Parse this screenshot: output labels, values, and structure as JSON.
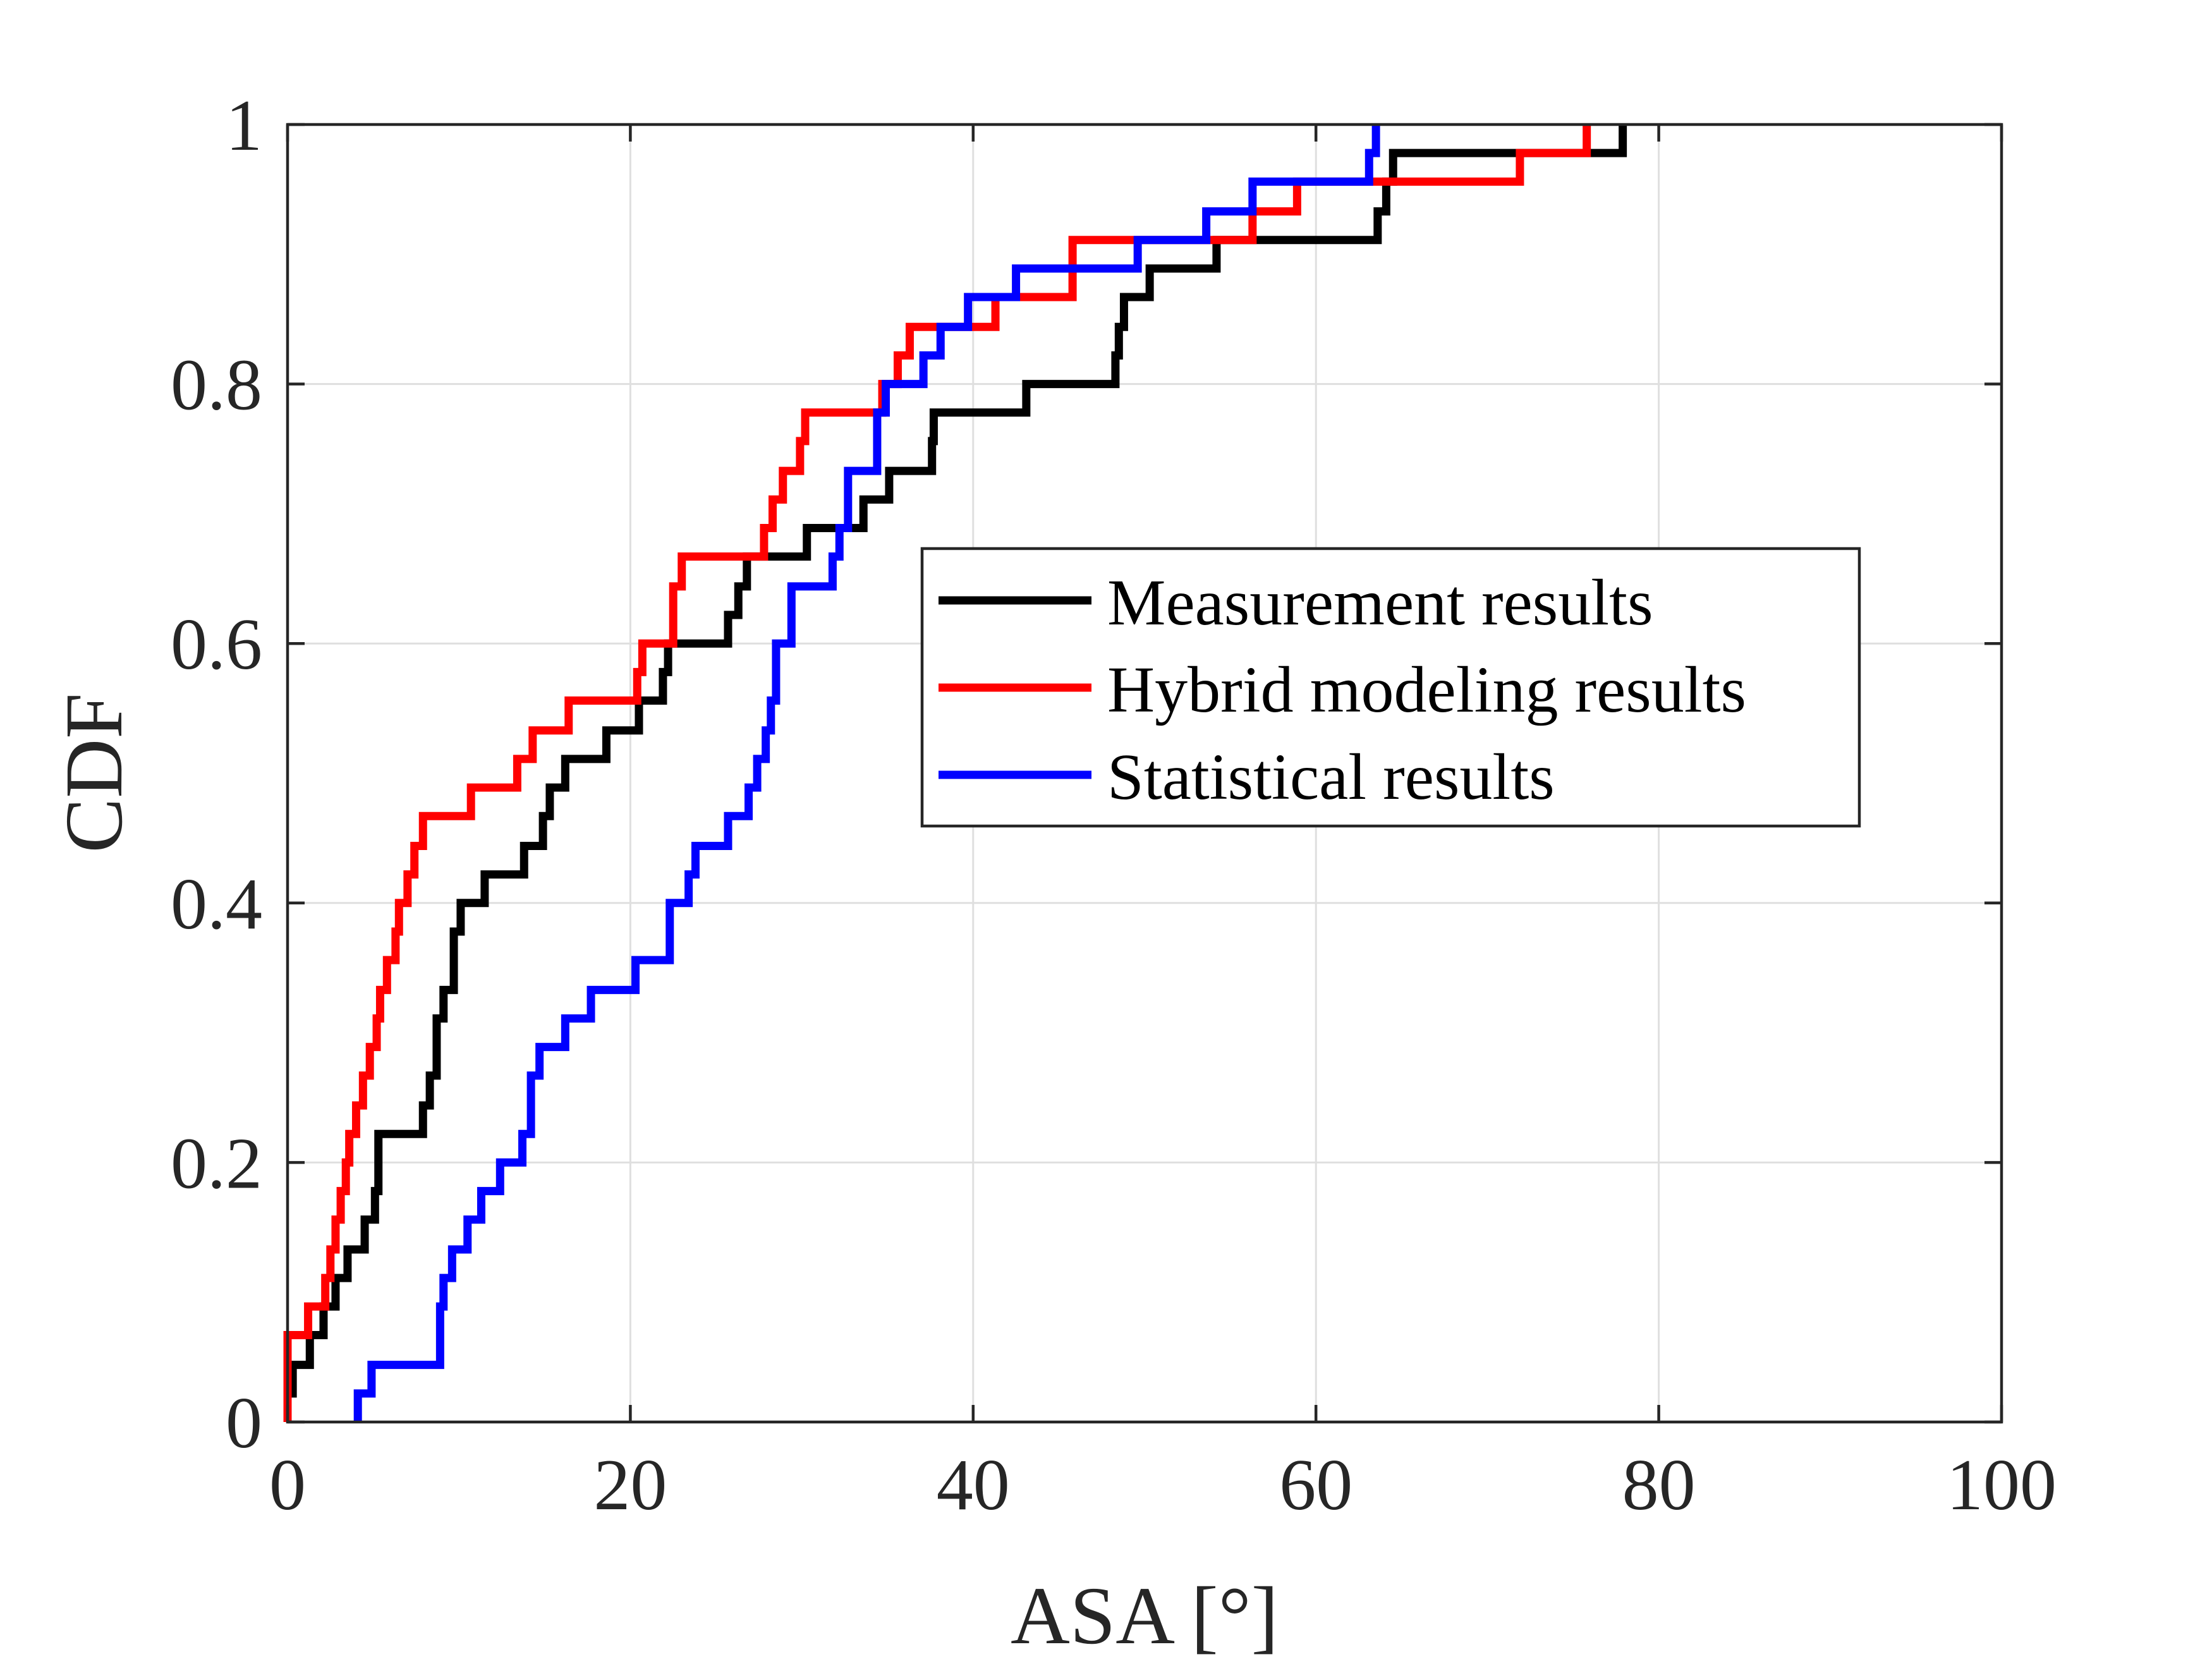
{
  "chart_data": {
    "type": "line",
    "subtype": "empirical-cdf-step",
    "title": "",
    "xlabel": "ASA [°]",
    "ylabel": "CDF",
    "xlim": [
      0,
      100
    ],
    "ylim": [
      0,
      1
    ],
    "xticks": [
      0,
      20,
      40,
      60,
      80,
      100
    ],
    "xtick_labels": [
      "0",
      "20",
      "40",
      "60",
      "80",
      "100"
    ],
    "yticks": [
      0,
      0.2,
      0.4,
      0.6,
      0.8,
      1
    ],
    "ytick_labels": [
      "0",
      "0.2",
      "0.4",
      "0.6",
      "0.8",
      "1"
    ],
    "grid": true,
    "legend_position": "center-right",
    "series": [
      {
        "name": "Measurement results",
        "color": "#000000",
        "x": [
          0,
          0.3,
          0.4,
          1.3,
          2.1,
          2.8,
          3.5,
          4.5,
          5.1,
          5.3,
          7.9,
          8.3,
          8.7,
          9.1,
          9.7,
          10.1,
          10.2,
          11.5,
          13.8,
          14.9,
          15.3,
          16.2,
          18.6,
          20.5,
          21.9,
          22.2,
          25.7,
          26.3,
          26.8,
          28.2,
          30.3,
          32.6,
          33.6,
          35.1,
          37.6,
          37.7,
          43.1,
          48.3,
          48.5,
          48.8,
          50.3,
          54.2,
          63.6,
          64.1,
          64.5,
          71.6,
          77.9
        ],
        "y": [
          0.022,
          0.044,
          0.044,
          0.067,
          0.089,
          0.111,
          0.133,
          0.156,
          0.178,
          0.222,
          0.244,
          0.267,
          0.311,
          0.333,
          0.378,
          0.4,
          0.4,
          0.422,
          0.444,
          0.467,
          0.489,
          0.511,
          0.533,
          0.556,
          0.578,
          0.6,
          0.622,
          0.644,
          0.667,
          0.667,
          0.689,
          0.689,
          0.711,
          0.733,
          0.756,
          0.778,
          0.8,
          0.822,
          0.844,
          0.867,
          0.889,
          0.911,
          0.933,
          0.956,
          0.978,
          0.978,
          1.0
        ]
      },
      {
        "name": "Hybrid modeling results",
        "color": "#ff0000",
        "x": [
          0,
          1.2,
          2.2,
          2.5,
          2.8,
          3.1,
          3.4,
          3.6,
          4.0,
          4.4,
          4.8,
          5.2,
          5.4,
          5.8,
          6.3,
          6.5,
          7.0,
          7.4,
          7.9,
          8.5,
          10.7,
          13.4,
          14.3,
          16.4,
          20.4,
          20.7,
          22.5,
          23.0,
          27.8,
          28.3,
          28.9,
          29.9,
          30.2,
          34.7,
          35.6,
          36.3,
          39.7,
          41.3,
          45.8,
          49.5,
          53.1,
          54.8,
          56.3,
          58.9,
          71.9,
          75.8
        ],
        "y": [
          0.067,
          0.089,
          0.111,
          0.133,
          0.156,
          0.178,
          0.2,
          0.222,
          0.244,
          0.267,
          0.289,
          0.311,
          0.333,
          0.356,
          0.378,
          0.4,
          0.422,
          0.444,
          0.467,
          0.467,
          0.489,
          0.511,
          0.533,
          0.556,
          0.578,
          0.6,
          0.644,
          0.667,
          0.689,
          0.711,
          0.733,
          0.756,
          0.778,
          0.8,
          0.822,
          0.844,
          0.844,
          0.867,
          0.911,
          0.911,
          0.911,
          0.911,
          0.933,
          0.956,
          0.978,
          1.0
        ]
      },
      {
        "name": "Statistical results",
        "color": "#0000ff",
        "x": [
          4.1,
          4.9,
          8.9,
          9.1,
          9.6,
          10.5,
          11.3,
          12.4,
          13.7,
          14.2,
          14.7,
          16.2,
          17.7,
          20.3,
          22.3,
          23.4,
          23.8,
          25.7,
          26.9,
          27.4,
          27.9,
          28.2,
          28.5,
          29.4,
          31.8,
          32.2,
          32.7,
          34.4,
          34.9,
          37.1,
          38.1,
          39.7,
          42.5,
          49.6,
          53.6,
          56.3,
          63.1,
          63.5
        ],
        "y": [
          0.022,
          0.044,
          0.089,
          0.111,
          0.133,
          0.156,
          0.178,
          0.2,
          0.222,
          0.267,
          0.289,
          0.311,
          0.333,
          0.356,
          0.4,
          0.422,
          0.444,
          0.467,
          0.489,
          0.511,
          0.533,
          0.556,
          0.6,
          0.644,
          0.667,
          0.689,
          0.733,
          0.778,
          0.8,
          0.822,
          0.844,
          0.867,
          0.889,
          0.911,
          0.933,
          0.956,
          0.978,
          1.0
        ]
      }
    ]
  }
}
